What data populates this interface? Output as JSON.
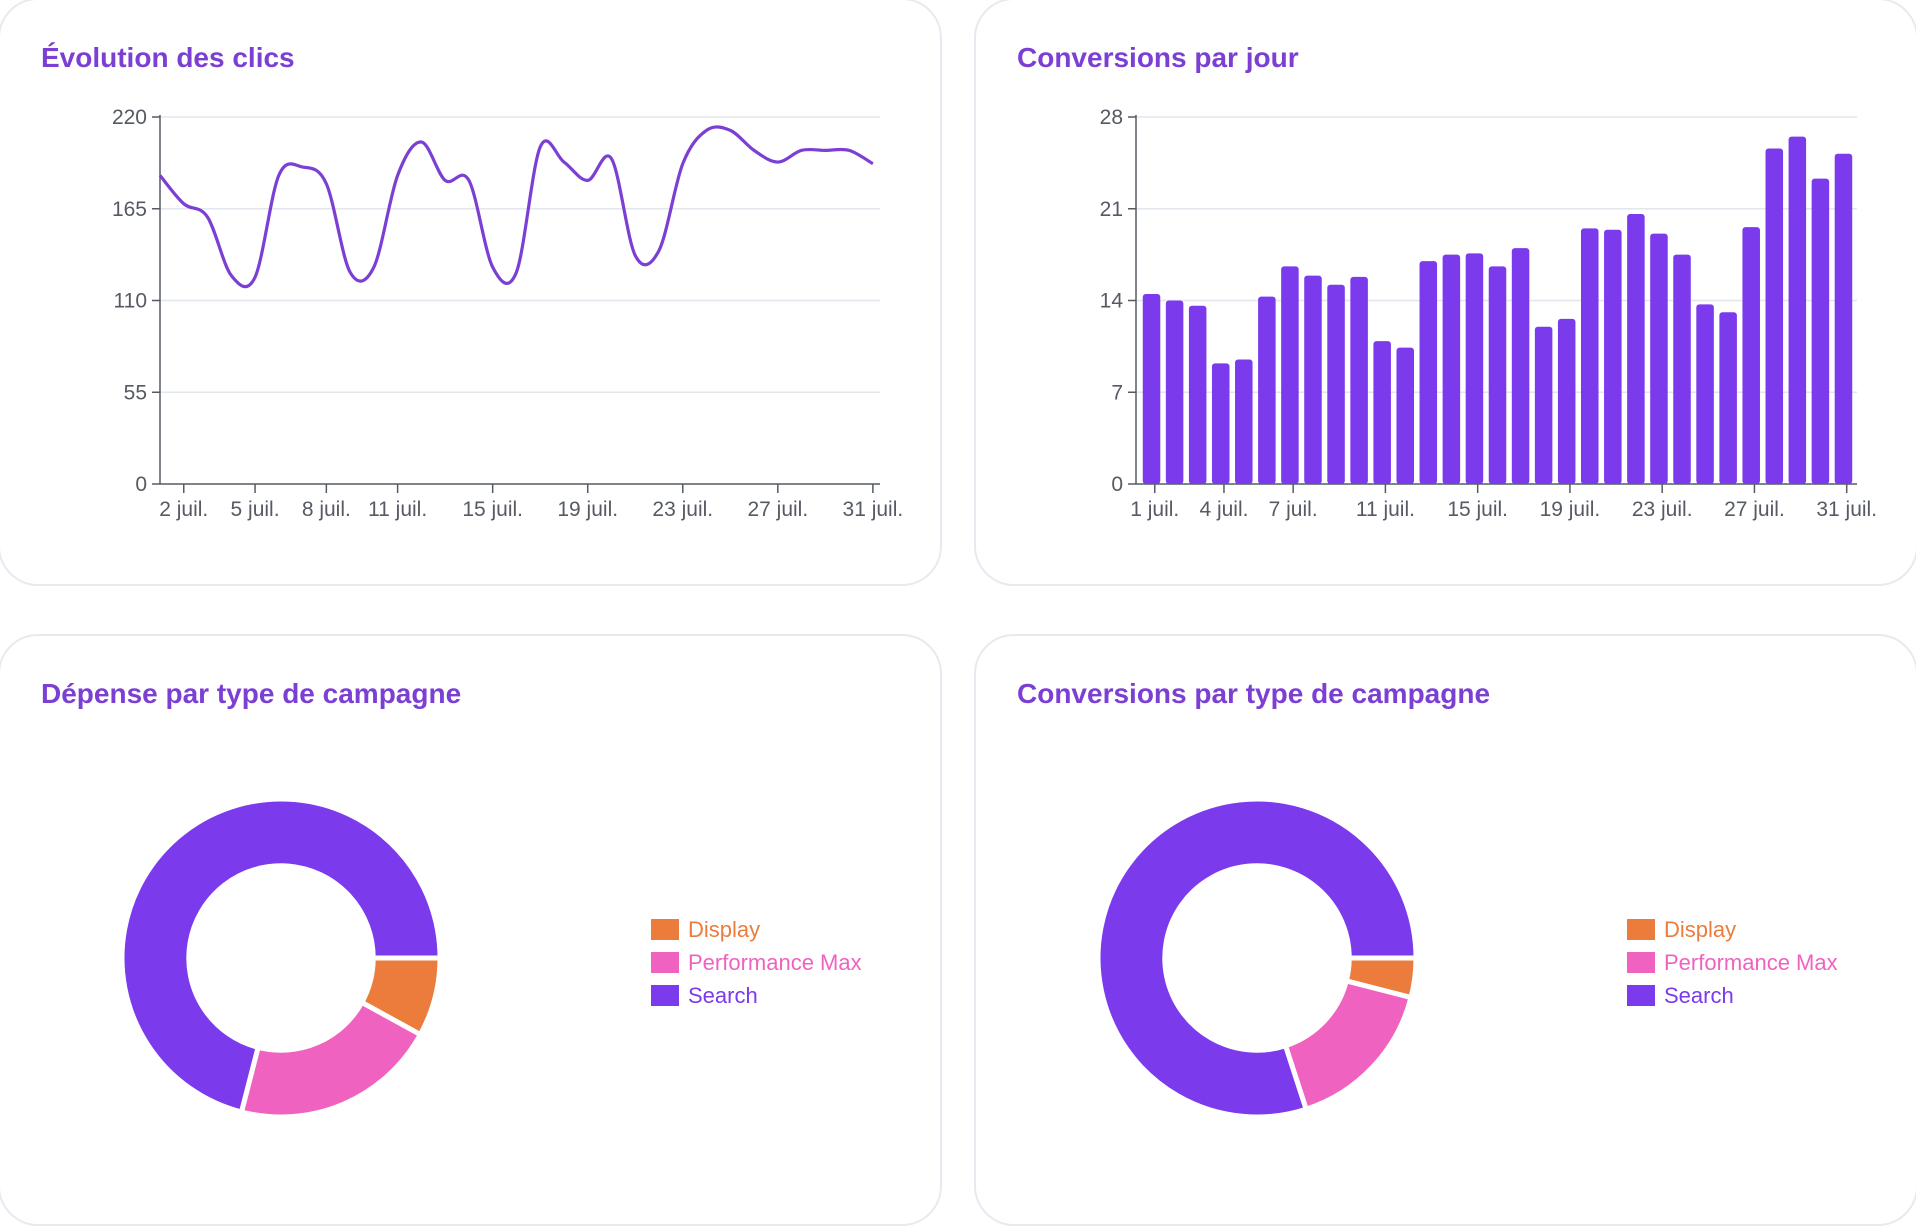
{
  "colors": {
    "title": "#7b3fd4",
    "line": "#7b3fd4",
    "bar": "#7c3aed",
    "grid": "#e3e6ec",
    "axis": "#555a63",
    "display": "#ec7c3c",
    "performance_max": "#f062c0",
    "search": "#7c3aed"
  },
  "chart_data": [
    {
      "id": "clicks",
      "type": "line",
      "title": "Évolution des clics",
      "xlabel": "",
      "ylabel": "",
      "ylim": [
        0,
        220
      ],
      "yticks": [
        0,
        55,
        110,
        165,
        220
      ],
      "xlim": [
        1,
        31.3
      ],
      "xticks": [
        {
          "x": 2,
          "label": "2 juil."
        },
        {
          "x": 5,
          "label": "5 juil."
        },
        {
          "x": 8,
          "label": "8 juil."
        },
        {
          "x": 11,
          "label": "11 juil."
        },
        {
          "x": 15,
          "label": "15 juil."
        },
        {
          "x": 19,
          "label": "19 juil."
        },
        {
          "x": 23,
          "label": "23 juil."
        },
        {
          "x": 27,
          "label": "27 juil."
        },
        {
          "x": 31,
          "label": "31 juil."
        }
      ],
      "x": [
        1,
        2,
        3,
        4,
        5,
        6,
        7,
        8,
        9,
        10,
        11,
        12,
        13,
        14,
        15,
        16,
        17,
        18,
        19,
        20,
        21,
        22,
        23,
        24,
        25,
        26,
        27,
        28,
        29,
        30,
        31
      ],
      "values": [
        185,
        168,
        160,
        125,
        124,
        185,
        190,
        180,
        127,
        130,
        185,
        205,
        182,
        182,
        130,
        127,
        202,
        193,
        182,
        195,
        137,
        140,
        192,
        212,
        212,
        200,
        193,
        200,
        200,
        200,
        192
      ],
      "grid": true
    },
    {
      "id": "conv-day",
      "type": "bar",
      "title": "Conversions par jour",
      "xlabel": "",
      "ylabel": "",
      "ylim": [
        0,
        28
      ],
      "yticks": [
        0,
        7,
        14,
        21,
        28
      ],
      "xticks": [
        {
          "x": 1,
          "label": "1 juil."
        },
        {
          "x": 4,
          "label": "4 juil."
        },
        {
          "x": 7,
          "label": "7 juil."
        },
        {
          "x": 11,
          "label": "11 juil."
        },
        {
          "x": 15,
          "label": "15 juil."
        },
        {
          "x": 19,
          "label": "19 juil."
        },
        {
          "x": 23,
          "label": "23 juil."
        },
        {
          "x": 27,
          "label": "27 juil."
        },
        {
          "x": 31,
          "label": "31 juil."
        }
      ],
      "x": [
        1,
        2,
        3,
        4,
        5,
        6,
        7,
        8,
        9,
        10,
        11,
        12,
        13,
        14,
        15,
        16,
        17,
        18,
        19,
        20,
        21,
        22,
        23,
        24,
        25,
        26,
        27,
        28,
        29,
        30,
        31
      ],
      "values": [
        14.5,
        14,
        13.6,
        9.2,
        9.5,
        14.3,
        16.6,
        15.9,
        15.2,
        15.8,
        10.9,
        10.4,
        17,
        17.5,
        17.6,
        16.6,
        18,
        12,
        12.6,
        19.5,
        19.4,
        20.6,
        19.1,
        17.5,
        13.7,
        13.1,
        19.6,
        25.6,
        26.5,
        23.3,
        25.2
      ],
      "grid": true
    },
    {
      "id": "spend-type",
      "type": "pie",
      "hole": 0.58,
      "title": "Dépense par type de campagne",
      "labels": [
        "Display",
        "Performance Max",
        "Search"
      ],
      "values": [
        8,
        21,
        71
      ],
      "legend": "right"
    },
    {
      "id": "conv-type",
      "type": "pie",
      "hole": 0.58,
      "title": "Conversions par type de campagne",
      "labels": [
        "Display",
        "Performance Max",
        "Search"
      ],
      "values": [
        4,
        16,
        80
      ],
      "legend": "right"
    }
  ]
}
